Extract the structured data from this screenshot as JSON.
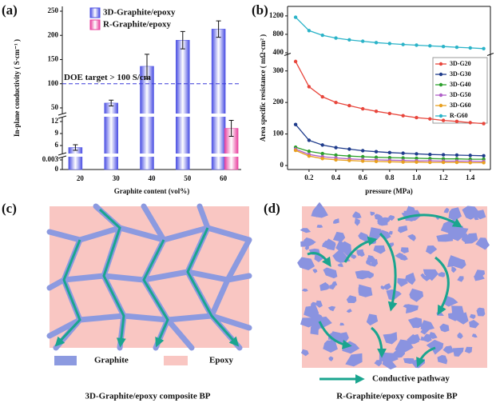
{
  "chart_data": [
    {
      "type": "bar",
      "label": "(a)",
      "xlabel": "Graphite content (vol%)",
      "ylabel": "In-plane conductivity ( S·cm⁻¹ )",
      "categories": [
        "20",
        "30",
        "40",
        "50",
        "60"
      ],
      "series": [
        {
          "name": "3D-Graphite/epoxy",
          "color": "#4b4fe3",
          "values": [
            5.5,
            60,
            136,
            190,
            213
          ],
          "errors": [
            0.7,
            6,
            25,
            18,
            17
          ]
        },
        {
          "name": "R-Graphite/epoxy",
          "color": "#e8409e",
          "values": [
            null,
            null,
            null,
            null,
            10.3
          ],
          "errors": [
            null,
            null,
            null,
            null,
            2
          ]
        }
      ],
      "y_segments": [
        {
          "ylim": [
            0,
            0.004
          ],
          "yticks": [
            0,
            0.003
          ]
        },
        {
          "ylim": [
            4,
            13
          ],
          "yticks": [
            6,
            9,
            12
          ]
        },
        {
          "ylim": [
            40,
            250
          ],
          "yticks": [
            50,
            100,
            150,
            200,
            250
          ]
        }
      ],
      "reference_line": {
        "value": 100,
        "label": "DOE target > 100 S/cm"
      },
      "legend": "upper left"
    },
    {
      "type": "line",
      "label": "(b)",
      "xlabel": "pressure (MPa)",
      "ylabel": "Area specific resistance ( mΩ·cm² )",
      "x": [
        0.1,
        0.2,
        0.3,
        0.4,
        0.5,
        0.6,
        0.7,
        0.8,
        0.9,
        1.0,
        1.1,
        1.2,
        1.3,
        1.4,
        1.5
      ],
      "xlim": [
        0.04,
        1.55
      ],
      "xticks": [
        0.2,
        0.4,
        0.6,
        0.8,
        {
          "value": 1,
          "label": "1.0"
        },
        1.2,
        1.4
      ],
      "series": [
        {
          "name": "3D-G20",
          "color": "#e8463c",
          "values": [
            330,
            250,
            218,
            200,
            190,
            180,
            172,
            165,
            158,
            152,
            148,
            143,
            140,
            136,
            133
          ]
        },
        {
          "name": "3D-G30",
          "color": "#1f3c8c",
          "values": [
            130,
            80,
            65,
            57,
            52,
            47,
            44,
            41,
            39,
            37,
            35,
            34,
            33,
            32,
            31
          ]
        },
        {
          "name": "3D-G40",
          "color": "#2ca02c",
          "values": [
            58,
            45,
            38,
            33,
            30,
            28,
            26,
            25,
            24,
            23,
            22,
            21,
            21,
            20,
            20
          ]
        },
        {
          "name": "3D-G50",
          "color": "#b05fc8",
          "values": [
            52,
            35,
            28,
            24,
            21,
            19,
            18,
            17,
            16,
            15,
            15,
            14,
            14,
            14,
            13
          ]
        },
        {
          "name": "3D-G60",
          "color": "#e8a020",
          "values": [
            48,
            30,
            22,
            18,
            16,
            14,
            13,
            12,
            11,
            11,
            10,
            10,
            10,
            9,
            9
          ]
        },
        {
          "name": "R-G60",
          "color": "#2ab3c8",
          "values": [
            1170,
            880,
            780,
            720,
            680,
            650,
            620,
            600,
            580,
            565,
            550,
            535,
            520,
            505,
            490
          ]
        }
      ],
      "y_segments": [
        {
          "ylim": [
            0,
            350
          ],
          "yticks": [
            0,
            100,
            200,
            300
          ]
        },
        {
          "ylim": [
            400,
            1250
          ],
          "yticks": [
            400,
            800,
            1200
          ]
        }
      ],
      "legend": "right"
    }
  ],
  "diagrams": [
    {
      "label": "(c)",
      "legend": [
        "Graphite",
        "Epoxy"
      ],
      "caption": "3D-Graphite/epoxy composite BP"
    },
    {
      "label": "(d)",
      "legend": [
        "Conductive pathway"
      ],
      "caption": "R-Graphite/epoxy composite BP"
    }
  ]
}
